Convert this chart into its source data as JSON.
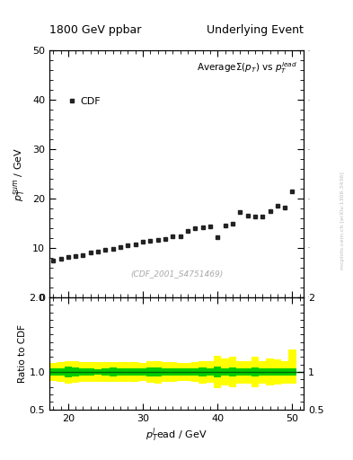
{
  "title_left": "1800 GeV ppbar",
  "title_right": "Underlying Event",
  "main_ylabel": "$p_T^{sum}$ / GeV",
  "main_xlabel": "$p_T^{l}$ead / GeV",
  "ratio_ylabel": "Ratio to CDF",
  "watermark": "(CDF_2001_S4751469)",
  "arxiv_text": "mcplots.cern.ch [arXiv:1306.3436]",
  "legend_label": "CDF",
  "xlim": [
    17.5,
    51.5
  ],
  "main_ylim": [
    0,
    50
  ],
  "ratio_ylim": [
    0.5,
    2.0
  ],
  "cdf_x": [
    18,
    19,
    20,
    21,
    22,
    23,
    24,
    25,
    26,
    27,
    28,
    29,
    30,
    31,
    32,
    33,
    34,
    35,
    36,
    37,
    38,
    39,
    40,
    41,
    42,
    43,
    44,
    45,
    46,
    47,
    48,
    49,
    50
  ],
  "cdf_y": [
    7.5,
    7.8,
    8.1,
    8.3,
    8.6,
    9.0,
    9.3,
    9.6,
    9.9,
    10.2,
    10.5,
    10.8,
    11.2,
    11.5,
    11.6,
    11.9,
    12.3,
    12.3,
    13.5,
    14.0,
    14.2,
    14.4,
    12.1,
    14.5,
    15.0,
    17.3,
    16.5,
    16.3,
    16.3,
    17.5,
    18.5,
    18.2,
    21.5
  ],
  "ratio_x": [
    18,
    19,
    20,
    21,
    22,
    23,
    24,
    25,
    26,
    27,
    28,
    29,
    30,
    31,
    32,
    33,
    34,
    35,
    36,
    37,
    38,
    39,
    40,
    41,
    42,
    43,
    44,
    45,
    46,
    47,
    48,
    49,
    50
  ],
  "ratio_green_lo": [
    0.95,
    0.95,
    0.93,
    0.94,
    0.95,
    0.95,
    0.96,
    0.95,
    0.94,
    0.95,
    0.95,
    0.95,
    0.95,
    0.94,
    0.94,
    0.95,
    0.95,
    0.95,
    0.95,
    0.95,
    0.94,
    0.95,
    0.93,
    0.95,
    0.94,
    0.95,
    0.95,
    0.94,
    0.95,
    0.95,
    0.95,
    0.95,
    0.95
  ],
  "ratio_green_hi": [
    1.05,
    1.05,
    1.07,
    1.06,
    1.05,
    1.05,
    1.04,
    1.05,
    1.06,
    1.05,
    1.05,
    1.05,
    1.05,
    1.06,
    1.06,
    1.05,
    1.05,
    1.05,
    1.05,
    1.05,
    1.06,
    1.05,
    1.07,
    1.05,
    1.06,
    1.05,
    1.05,
    1.06,
    1.05,
    1.05,
    1.05,
    1.05,
    1.05
  ],
  "ratio_yellow_lo": [
    0.88,
    0.87,
    0.85,
    0.86,
    0.87,
    0.87,
    0.87,
    0.87,
    0.87,
    0.87,
    0.87,
    0.87,
    0.88,
    0.86,
    0.85,
    0.87,
    0.87,
    0.88,
    0.88,
    0.87,
    0.85,
    0.86,
    0.78,
    0.82,
    0.8,
    0.85,
    0.85,
    0.8,
    0.85,
    0.82,
    0.83,
    0.85,
    0.85
  ],
  "ratio_yellow_hi": [
    1.12,
    1.13,
    1.15,
    1.14,
    1.13,
    1.13,
    1.13,
    1.13,
    1.13,
    1.13,
    1.13,
    1.13,
    1.12,
    1.14,
    1.15,
    1.13,
    1.13,
    1.12,
    1.12,
    1.13,
    1.15,
    1.14,
    1.22,
    1.18,
    1.2,
    1.15,
    1.15,
    1.2,
    1.15,
    1.18,
    1.17,
    1.15,
    1.3
  ],
  "data_color": "#222222",
  "green_color": "#00CC00",
  "yellow_color": "#FFFF00",
  "ratio_line_color": "#006600",
  "bg_color": "#ffffff"
}
